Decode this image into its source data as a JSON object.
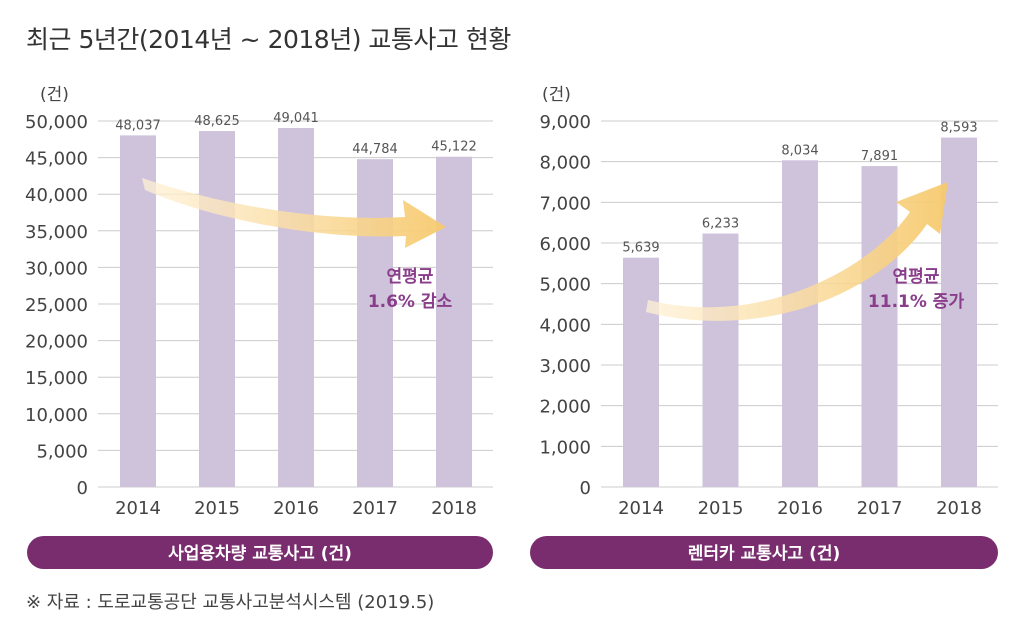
{
  "page_title": "최근 5년간(2014년 ~ 2018년) 교통사고 현황",
  "source_note": "※ 자료 : 도로교통공단 교통사고분석시스템 (2019.5)",
  "colors": {
    "bar": "#cfc3dc",
    "grid": "#cccccc",
    "axis_text": "#444444",
    "value_label": "#555555",
    "annotation": "#8a3d8a",
    "banner_bg": "#7a2d6e",
    "banner_text": "#ffffff",
    "arrow_start": "#fff1d6",
    "arrow_end": "#f6c96d"
  },
  "chart_data": [
    {
      "type": "bar",
      "unit_label": "(건)",
      "categories": [
        "2014",
        "2015",
        "2016",
        "2017",
        "2018"
      ],
      "values": [
        48037,
        48625,
        49041,
        44784,
        45122
      ],
      "value_labels": [
        "48,037",
        "48,625",
        "49,041",
        "44,784",
        "45,122"
      ],
      "ylim": [
        0,
        50000
      ],
      "yticks": [
        0,
        5000,
        10000,
        15000,
        20000,
        25000,
        30000,
        35000,
        40000,
        45000,
        50000
      ],
      "ytick_labels": [
        "0",
        "5,000",
        "10,000",
        "15,000",
        "20,000",
        "25,000",
        "30,000",
        "35,000",
        "40,000",
        "45,000",
        "50,000"
      ],
      "grid": true,
      "annotation_lines": [
        "연평균",
        "1.6% 감소"
      ],
      "trend": "down",
      "banner": "사업용차량 교통사고 (건)"
    },
    {
      "type": "bar",
      "unit_label": "(건)",
      "categories": [
        "2014",
        "2015",
        "2016",
        "2017",
        "2018"
      ],
      "values": [
        5639,
        6233,
        8034,
        7891,
        8593
      ],
      "value_labels": [
        "5,639",
        "6,233",
        "8,034",
        "7,891",
        "8,593"
      ],
      "ylim": [
        0,
        9000
      ],
      "yticks": [
        0,
        1000,
        2000,
        3000,
        4000,
        5000,
        6000,
        7000,
        8000,
        9000
      ],
      "ytick_labels": [
        "0",
        "1,000",
        "2,000",
        "3,000",
        "4,000",
        "5,000",
        "6,000",
        "7,000",
        "8,000",
        "9,000"
      ],
      "grid": true,
      "annotation_lines": [
        "연평균",
        "11.1% 증가"
      ],
      "trend": "up",
      "banner": "렌터카 교통사고 (건)"
    }
  ]
}
